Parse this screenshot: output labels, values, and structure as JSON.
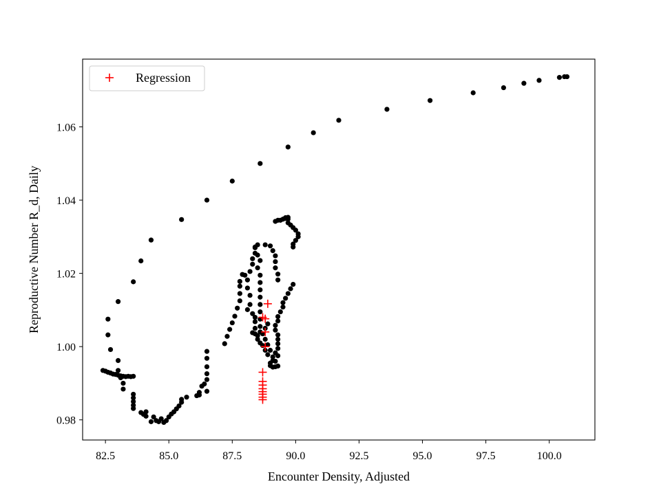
{
  "chart_data": {
    "type": "scatter",
    "title": "",
    "xlabel": "Encounter Density, Adjusted",
    "ylabel": "Reproductive Number R_d, Daily",
    "xlim": [
      81.6,
      101.8
    ],
    "ylim": [
      0.9745,
      1.0785
    ],
    "xticks": [
      "82.5",
      "85.0",
      "87.5",
      "90.0",
      "92.5",
      "95.0",
      "97.5",
      "100.0"
    ],
    "yticks": [
      "0.98",
      "1.00",
      "1.02",
      "1.04",
      "1.06"
    ],
    "grid": false,
    "legend_position": "top-left",
    "colors": {
      "data": "#000000",
      "regression": "#ff0000"
    },
    "series": [
      {
        "name": "",
        "marker": "dot",
        "points": [
          [
            100.7,
            1.0737
          ],
          [
            100.6,
            1.0737
          ],
          [
            100.4,
            1.0735
          ],
          [
            99.6,
            1.0727
          ],
          [
            99.0,
            1.0719
          ],
          [
            98.2,
            1.0707
          ],
          [
            97.0,
            1.0693
          ],
          [
            95.3,
            1.0672
          ],
          [
            93.6,
            1.0648
          ],
          [
            91.7,
            1.0618
          ],
          [
            90.7,
            1.0584
          ],
          [
            89.7,
            1.0545
          ],
          [
            88.6,
            1.05
          ],
          [
            87.5,
            1.0452
          ],
          [
            86.5,
            1.04
          ],
          [
            85.5,
            1.0347
          ],
          [
            84.3,
            1.0291
          ],
          [
            83.9,
            1.0234
          ],
          [
            83.6,
            1.0177
          ],
          [
            83.0,
            1.0123
          ],
          [
            82.6,
            1.0075
          ],
          [
            82.6,
            1.0032
          ],
          [
            82.7,
            0.9992
          ],
          [
            82.4,
            0.9935
          ],
          [
            82.5,
            0.9933
          ],
          [
            82.6,
            0.993
          ],
          [
            82.7,
            0.9928
          ],
          [
            82.8,
            0.9925
          ],
          [
            82.9,
            0.9924
          ],
          [
            83.0,
            0.9922
          ],
          [
            83.1,
            0.992
          ],
          [
            83.2,
            0.9919
          ],
          [
            83.3,
            0.9918
          ],
          [
            83.4,
            0.9919
          ],
          [
            83.5,
            0.9918
          ],
          [
            83.6,
            0.9919
          ],
          [
            83.0,
            0.9962
          ],
          [
            83.0,
            0.9935
          ],
          [
            83.1,
            0.9915
          ],
          [
            83.2,
            0.99
          ],
          [
            83.2,
            0.9884
          ],
          [
            83.6,
            0.987
          ],
          [
            83.6,
            0.986
          ],
          [
            83.6,
            0.985
          ],
          [
            83.6,
            0.984
          ],
          [
            83.6,
            0.9831
          ],
          [
            83.9,
            0.982
          ],
          [
            84.0,
            0.9815
          ],
          [
            84.1,
            0.9822
          ],
          [
            84.1,
            0.981
          ],
          [
            84.3,
            0.9795
          ],
          [
            84.4,
            0.9808
          ],
          [
            84.5,
            0.9798
          ],
          [
            84.6,
            0.9795
          ],
          [
            84.7,
            0.9803
          ],
          [
            84.8,
            0.9793
          ],
          [
            84.9,
            0.9798
          ],
          [
            85.0,
            0.9808
          ],
          [
            85.1,
            0.9816
          ],
          [
            85.2,
            0.9822
          ],
          [
            85.3,
            0.983
          ],
          [
            85.4,
            0.9838
          ],
          [
            85.5,
            0.9848
          ],
          [
            85.5,
            0.9856
          ],
          [
            85.7,
            0.9862
          ],
          [
            86.1,
            0.9866
          ],
          [
            86.2,
            0.9875
          ],
          [
            86.2,
            0.9868
          ],
          [
            86.4,
            0.9898
          ],
          [
            86.3,
            0.9892
          ],
          [
            86.5,
            0.9878
          ],
          [
            86.5,
            0.991
          ],
          [
            86.5,
            0.9926
          ],
          [
            86.5,
            0.9945
          ],
          [
            86.5,
            0.9968
          ],
          [
            86.5,
            0.9987
          ],
          [
            87.2,
            1.0008
          ],
          [
            87.3,
            1.0028
          ],
          [
            87.4,
            1.0047
          ],
          [
            87.5,
            1.0065
          ],
          [
            87.6,
            1.0083
          ],
          [
            87.7,
            1.0105
          ],
          [
            87.8,
            1.0125
          ],
          [
            87.8,
            1.0145
          ],
          [
            87.8,
            1.0165
          ],
          [
            87.8,
            1.0178
          ],
          [
            87.9,
            1.0197
          ],
          [
            88.0,
            1.0195
          ],
          [
            88.1,
            1.0182
          ],
          [
            88.1,
            1.016
          ],
          [
            88.2,
            1.014
          ],
          [
            88.1,
            1.0101
          ],
          [
            88.2,
            1.0115
          ],
          [
            88.3,
            1.009
          ],
          [
            88.4,
            1.008
          ],
          [
            88.4,
            1.0068
          ],
          [
            88.4,
            1.005
          ],
          [
            88.4,
            1.0035
          ],
          [
            88.3,
            1.0038
          ],
          [
            88.5,
            1.003
          ],
          [
            88.5,
            1.002
          ],
          [
            88.6,
            1.001
          ],
          [
            88.7,
            1.0003
          ],
          [
            88.8,
            0.999
          ],
          [
            88.9,
            0.9978
          ],
          [
            88.2,
            1.0205
          ],
          [
            88.3,
            1.0225
          ],
          [
            88.3,
            1.024
          ],
          [
            88.4,
            1.0255
          ],
          [
            88.4,
            1.027
          ],
          [
            88.5,
            1.0278
          ],
          [
            88.4,
            1.0272
          ],
          [
            88.5,
            1.025
          ],
          [
            88.6,
            1.0235
          ],
          [
            88.5,
            1.0215
          ],
          [
            88.6,
            1.0195
          ],
          [
            88.6,
            1.0175
          ],
          [
            88.6,
            1.0155
          ],
          [
            88.6,
            1.0135
          ],
          [
            88.6,
            1.0115
          ],
          [
            88.6,
            1.0095
          ],
          [
            88.6,
            1.0075
          ],
          [
            88.6,
            1.0055
          ],
          [
            88.6,
            1.004
          ],
          [
            88.8,
            1.0278
          ],
          [
            89.0,
            1.0275
          ],
          [
            89.1,
            1.0262
          ],
          [
            89.2,
            1.0248
          ],
          [
            89.2,
            1.0232
          ],
          [
            89.2,
            1.0215
          ],
          [
            89.3,
            1.0198
          ],
          [
            89.3,
            1.0182
          ],
          [
            89.2,
            1.0342
          ],
          [
            89.3,
            1.0345
          ],
          [
            89.4,
            1.0345
          ],
          [
            89.5,
            1.0348
          ],
          [
            89.6,
            1.035
          ],
          [
            89.6,
            1.0352
          ],
          [
            89.7,
            1.0353
          ],
          [
            89.7,
            1.0348
          ],
          [
            89.7,
            1.0338
          ],
          [
            89.8,
            1.0332
          ],
          [
            89.9,
            1.0325
          ],
          [
            90.0,
            1.0318
          ],
          [
            90.1,
            1.0308
          ],
          [
            90.1,
            1.03
          ],
          [
            90.0,
            1.029
          ],
          [
            89.9,
            1.028
          ],
          [
            89.9,
            1.0272
          ],
          [
            89.9,
            1.017
          ],
          [
            89.8,
            1.0158
          ],
          [
            89.7,
            1.0145
          ],
          [
            89.6,
            1.0132
          ],
          [
            89.5,
            1.012
          ],
          [
            89.5,
            1.0108
          ],
          [
            89.4,
            1.0095
          ],
          [
            89.3,
            1.0082
          ],
          [
            89.3,
            1.007
          ],
          [
            89.2,
            1.0058
          ],
          [
            89.2,
            1.0045
          ],
          [
            89.3,
            1.0032
          ],
          [
            89.3,
            1.002
          ],
          [
            89.3,
            1.0008
          ],
          [
            89.3,
            0.9995
          ],
          [
            89.2,
            0.9983
          ],
          [
            89.1,
            0.9972
          ],
          [
            89.1,
            0.9962
          ],
          [
            89.0,
            0.9955
          ],
          [
            89.0,
            0.9948
          ],
          [
            89.1,
            0.9944
          ],
          [
            89.2,
            0.9945
          ],
          [
            89.3,
            0.9947
          ],
          [
            89.2,
            0.996
          ],
          [
            89.3,
            0.9975
          ],
          [
            89.0,
            0.999
          ],
          [
            88.9,
            1.0005
          ],
          [
            88.8,
            1.002
          ],
          [
            88.7,
            1.0035
          ],
          [
            88.8,
            1.005
          ],
          [
            88.9,
            1.0062
          ]
        ]
      },
      {
        "name": "Regression",
        "marker": "plus",
        "points": [
          [
            88.9,
            1.0117
          ],
          [
            88.7,
            1.008
          ],
          [
            88.8,
            1.0076
          ],
          [
            88.8,
            1.004
          ],
          [
            88.8,
            1.0
          ],
          [
            88.7,
            0.993
          ],
          [
            88.7,
            0.9905
          ],
          [
            88.7,
            0.9895
          ],
          [
            88.7,
            0.9885
          ],
          [
            88.7,
            0.9877
          ],
          [
            88.7,
            0.987
          ],
          [
            88.7,
            0.9862
          ],
          [
            88.7,
            0.9855
          ]
        ]
      }
    ]
  }
}
